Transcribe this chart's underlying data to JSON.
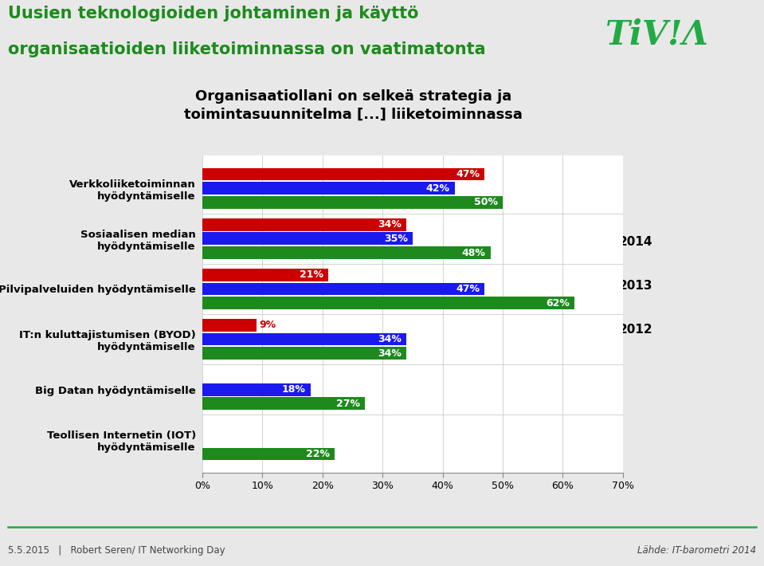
{
  "title_main_line1": "Uusien teknologioiden johtaminen ja käyttö",
  "title_main_line2": "organisaatioiden liiketoiminnassa on vaatimatonta",
  "chart_title": "Organisaatiollani on selkeä strategia ja\ntoimintasuunnitelma [...] liiketoiminnassa",
  "categories": [
    "Verkkoliiketoiminnan\nhyödyntämiselle",
    "Sosiaalisen median\nhyödyntämiselle",
    "Pilvipalveluiden hyödyntämiselle",
    "IT:n kuluttajistumisen (BYOD)\nhyödyntämiselle",
    "Big Datan hyödyntämiselle",
    "Teollisen Internetin (IOT)\nhyödyntämiselle"
  ],
  "values_2014": [
    50,
    48,
    62,
    34,
    27,
    22
  ],
  "values_2013": [
    42,
    35,
    47,
    34,
    18,
    null
  ],
  "values_2012": [
    47,
    34,
    21,
    9,
    null,
    null
  ],
  "color_2014": "#1e8a1e",
  "color_2013": "#1a1aee",
  "color_2012": "#cc0000",
  "bar_height": 0.25,
  "xlim": [
    0,
    70
  ],
  "xticks": [
    0,
    10,
    20,
    30,
    40,
    50,
    60,
    70
  ],
  "footer_left": "5.5.2015   |   Robert Seren/ IT Networking Day",
  "footer_right": "Lähde: IT-barometri 2014",
  "tivia_color": "#22aa44",
  "title_color": "#1e8a1e",
  "line_color": "#22aa44",
  "panel_bg": "#ffffff",
  "outer_bg": "#e8e8e8",
  "label_fontsize": 9,
  "label_color": "#ffffff"
}
